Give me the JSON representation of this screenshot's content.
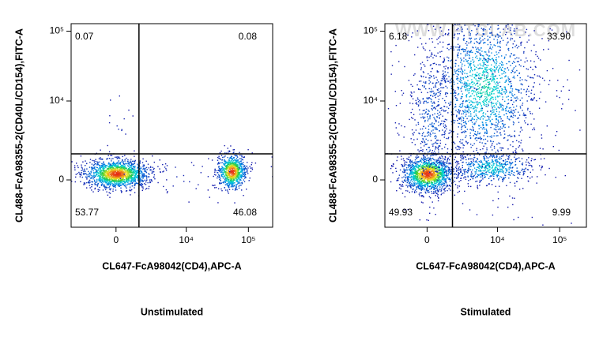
{
  "chart_data": [
    {
      "type": "quadrant",
      "title": "Unstimulated",
      "x_label": "CL647-FcA98042(CD4),APC-A",
      "y_label": "CL488-FcA98355-2(CD40L/CD154),FITC-A",
      "xlim": [
        -3800,
        245000
      ],
      "ylim": [
        -3400,
        128000
      ],
      "xticks": [
        0,
        {
          "value": 10000,
          "label": "10⁴"
        },
        {
          "value": 100000,
          "label": "10⁵"
        }
      ],
      "yticks": [
        0,
        {
          "value": 10000,
          "label": "10⁴"
        },
        {
          "value": 100000,
          "label": "10⁵"
        }
      ],
      "gate": {
        "x": 1430,
        "y": 1450
      },
      "values": [
        0.07,
        0.08,
        53.77,
        46.08
      ]
    },
    {
      "type": "quadrant",
      "title": "Stimulated",
      "x_label": "CL647-FcA98042(CD4),APC-A",
      "y_label": "CL488-FcA98355-2(CD40L/CD154),FITC-A",
      "xlim": [
        -3400,
        268000
      ],
      "ylim": [
        -3400,
        128000
      ],
      "xticks": [
        0,
        {
          "value": 10000,
          "label": "10⁴"
        },
        {
          "value": 100000,
          "label": "10⁵"
        }
      ],
      "yticks": [
        0,
        {
          "value": 10000,
          "label": "10⁴"
        },
        {
          "value": 100000,
          "label": "10⁵"
        }
      ],
      "gate": {
        "x": 1620,
        "y": 1450
      },
      "values": [
        6.18,
        33.9,
        49.93,
        9.99
      ],
      "value_labels": [
        "6.18",
        "33.90",
        "49.93",
        "9.99"
      ],
      "watermark": "WWW.PTGLAB.COM"
    }
  ]
}
